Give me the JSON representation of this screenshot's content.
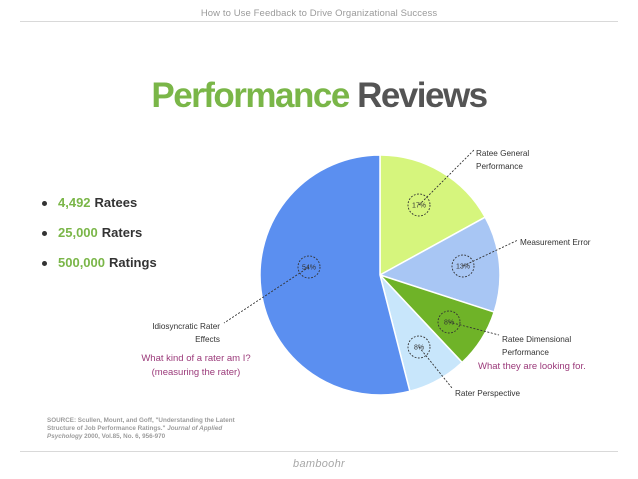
{
  "header": {
    "title": "How to Use Feedback to Drive Organizational Success"
  },
  "slide": {
    "title_part1": "Performance",
    "title_part2": "Reviews"
  },
  "bullets": [
    {
      "number": "4,492",
      "text": "Ratees"
    },
    {
      "number": "25,000",
      "text": "Raters"
    },
    {
      "number": "500,000",
      "text": "Ratings"
    }
  ],
  "annotations": {
    "rater_question_line1": "What kind of a rater am I?",
    "rater_question_line2": "(measuring the rater)",
    "dimensional_note": "What they are looking for."
  },
  "source": {
    "line1": "SOURCE: Scullen, Mount, and Goff, \"Understanding the Latent",
    "line2_plain": "Structure of Job Performance Ratings.\"",
    "line2_italic": "Journal of Applied",
    "line3_italic": "Psychology",
    "line3_plain": "2000, Vol.85, No. 6, 956-970"
  },
  "footer": {
    "brand": "bamboohr"
  },
  "colors": {
    "green": "#7ab648",
    "title_gray": "#545454",
    "annotation_purple": "#9b3a7a"
  },
  "chart_data": {
    "type": "pie",
    "title": "",
    "slices": [
      {
        "label": "Ratee General Performance",
        "lines": [
          "Ratee General",
          "Performance"
        ],
        "value": 17,
        "pct_label": "17%",
        "color": "#d6f57d"
      },
      {
        "label": "Measurement Error",
        "lines": [
          "Measurement Error"
        ],
        "value": 13,
        "pct_label": "13%",
        "color": "#a8c6f4"
      },
      {
        "label": "Ratee Dimensional Performance",
        "lines": [
          "Ratee Dimensional",
          "Performance"
        ],
        "value": 8,
        "pct_label": "8%",
        "color": "#6fb328"
      },
      {
        "label": "Rater Perspective",
        "lines": [
          "Rater Perspective"
        ],
        "value": 8,
        "pct_label": "8%",
        "color": "#c8e6fb"
      },
      {
        "label": "Idiosyncratic Rater Effects",
        "lines": [
          "Idiosyncratic Rater",
          "Effects"
        ],
        "value": 54,
        "pct_label": "54%",
        "color": "#5b8ff0"
      }
    ]
  }
}
